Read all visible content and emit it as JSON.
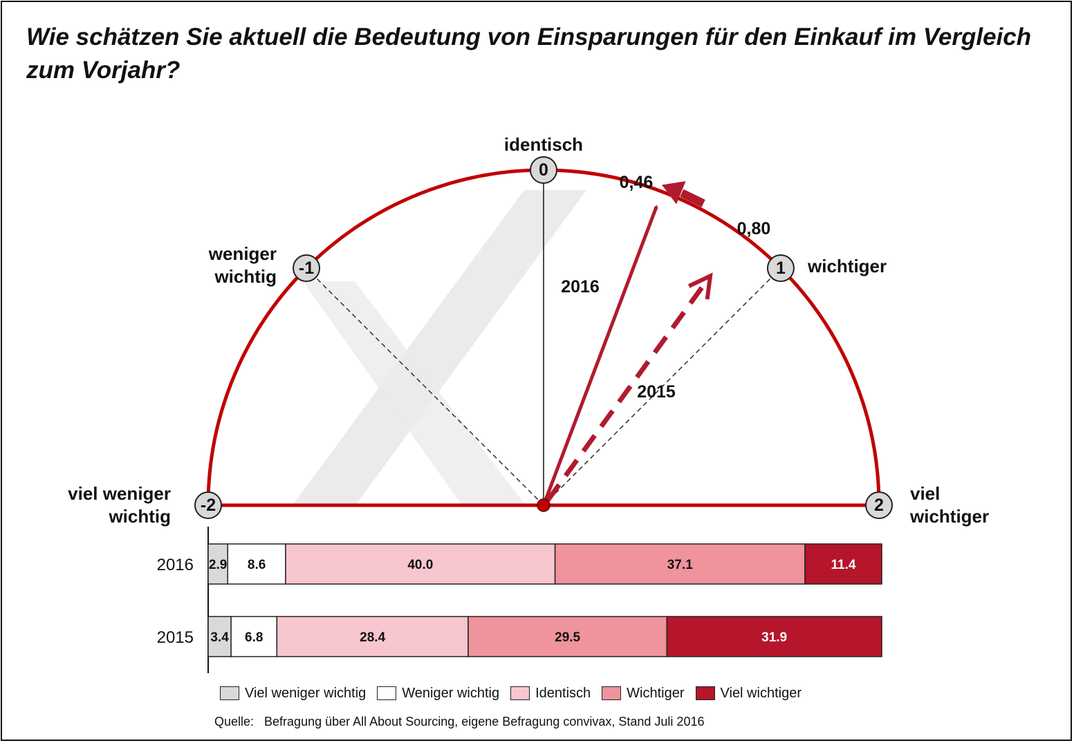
{
  "title": "Wie schätzen Sie aktuell die Bedeutung von Einsparungen für den Einkauf im Vergleich zum Vorjahr?",
  "colors": {
    "red": "#c00000",
    "arrow": "#b01b2e",
    "grey_watermark": "#ebebec",
    "viel_weniger_wichtig": "#d9d9d9",
    "weniger_wichtig": "#ffffff",
    "identisch": "#f7c6ce",
    "wichtiger": "#ef939c",
    "viel_wichtiger": "#b5162b"
  },
  "gauge": {
    "scale": [
      {
        "value": "-2",
        "label": [
          "viel weniger",
          "wichtig"
        ]
      },
      {
        "value": "-1",
        "label": [
          "weniger",
          "wichtig"
        ]
      },
      {
        "value": "0",
        "label": [
          "identisch"
        ]
      },
      {
        "value": "1",
        "label": [
          "wichtiger"
        ]
      },
      {
        "value": "2",
        "label": [
          "viel",
          "wichtiger"
        ]
      }
    ],
    "arrows": [
      {
        "year": "2016",
        "value": 0.46,
        "value_label": "0,46",
        "style": "solid"
      },
      {
        "year": "2015",
        "value": 0.8,
        "value_label": "0,80",
        "style": "dashed"
      }
    ]
  },
  "chart_data": {
    "type": "bar",
    "stacked": true,
    "orientation": "horizontal",
    "categories": [
      "2016",
      "2015"
    ],
    "series": [
      {
        "name": "Viel weniger wichtig",
        "values": [
          2.9,
          3.4
        ]
      },
      {
        "name": "Weniger wichtig",
        "values": [
          8.6,
          6.8
        ]
      },
      {
        "name": "Identisch",
        "values": [
          40.0,
          28.4
        ]
      },
      {
        "name": "Wichtiger",
        "values": [
          37.1,
          29.5
        ]
      },
      {
        "name": "Viel wichtiger",
        "values": [
          11.4,
          31.9
        ]
      }
    ],
    "value_labels": [
      [
        "2.9",
        "8.6",
        "40.0",
        "37.1",
        "11.4"
      ],
      [
        "3.4",
        "6.8",
        "28.4",
        "29.5",
        "31.9"
      ]
    ],
    "legend_position": "bottom"
  },
  "source": "Quelle:   Befragung über All About Sourcing, eigene Befragung convivax, Stand Juli 2016"
}
